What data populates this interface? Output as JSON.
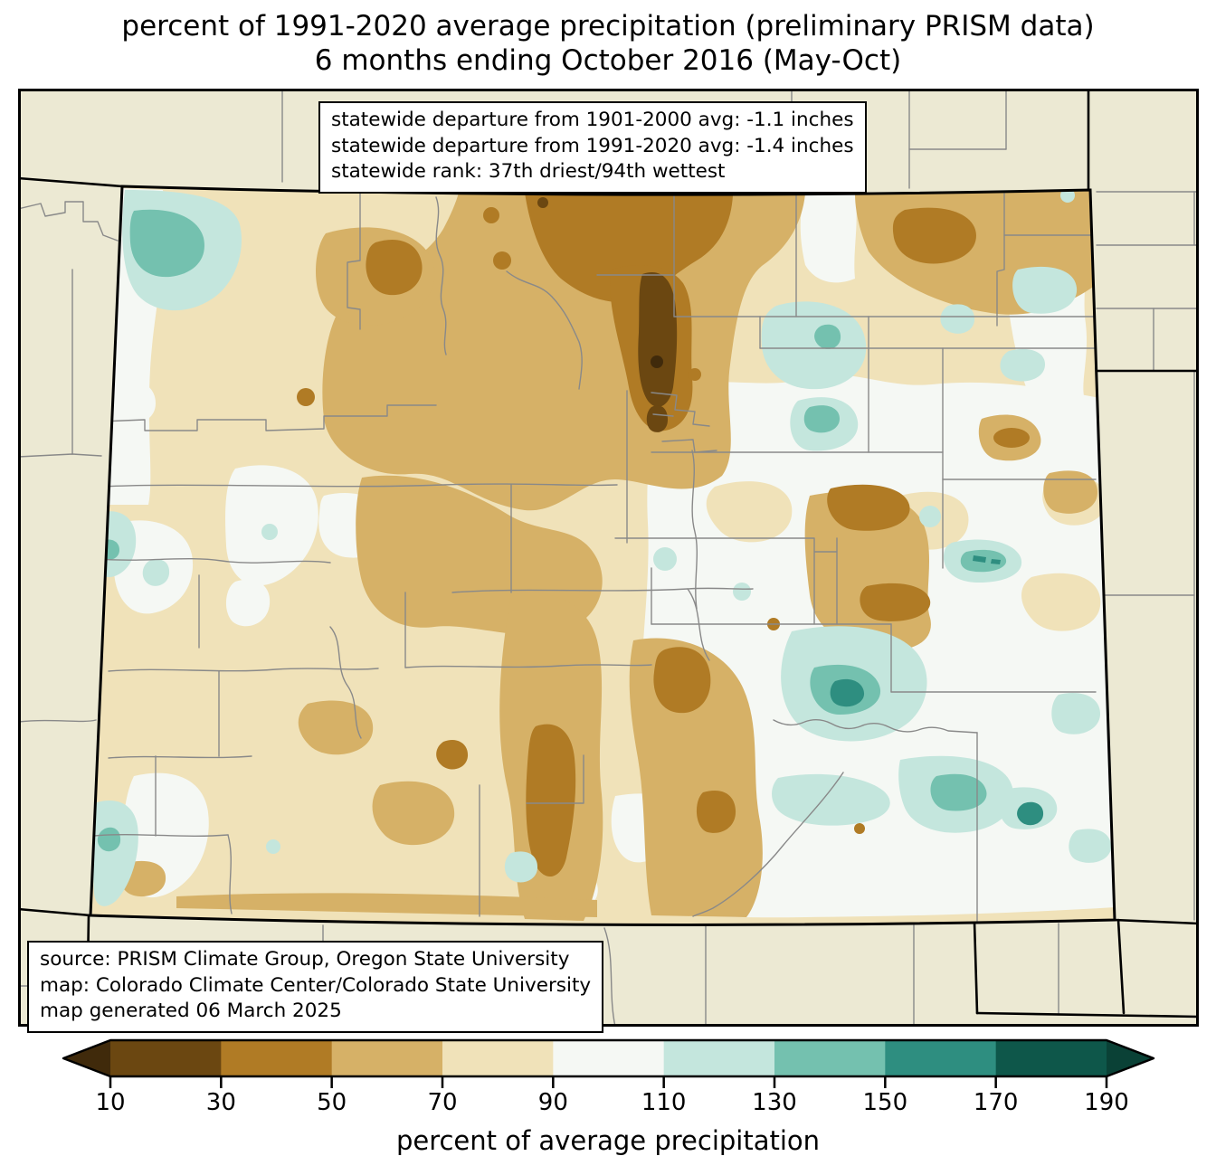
{
  "title": {
    "line1": "percent of 1991-2020 average precipitation (preliminary PRISM data)",
    "line2": "6 months ending October 2016 (May-Oct)"
  },
  "stats_box": {
    "line1": "statewide departure from 1901-2000 avg: -1.1 inches",
    "line2": "statewide departure from 1991-2020 avg: -1.4 inches",
    "line3": "statewide rank: 37th driest/94th wettest"
  },
  "source_box": {
    "line1": "source: PRISM Climate Group, Oregon State University",
    "line2": "map: Colorado Climate Center/Colorado State University",
    "line3": "map generated 06 March 2025"
  },
  "colorbar": {
    "label": "percent of average precipitation",
    "ticks": [
      "10",
      "30",
      "50",
      "70",
      "90",
      "110",
      "130",
      "150",
      "170",
      "190"
    ],
    "band_colors": [
      "#6B4711",
      "#B07B25",
      "#D6B167",
      "#F0E2B9",
      "#F5F8F4",
      "#C4E6DD",
      "#74C1AF",
      "#2E8E80",
      "#0E574A"
    ],
    "under_color": "#402A0B",
    "over_color": "#0A4136"
  },
  "map": {
    "region": "Colorado",
    "neighbor_fill": "#ECE9D3",
    "base_fill": "#F0E2B9",
    "county_line_color": "#898989",
    "state_border_color": "#000000"
  },
  "chart_data": {
    "type": "heatmap",
    "title": "percent of 1991-2020 average precipitation (preliminary PRISM data)",
    "subtitle": "6 months ending October 2016 (May-Oct)",
    "region": "Colorado",
    "variable": "percent of average precipitation",
    "colorbar_ticks": [
      10,
      30,
      50,
      70,
      90,
      110,
      130,
      150,
      170,
      190
    ],
    "bands": [
      {
        "range": "<10",
        "color": "#402A0B"
      },
      {
        "range": "10-30",
        "color": "#6B4711"
      },
      {
        "range": "30-50",
        "color": "#B07B25"
      },
      {
        "range": "50-70",
        "color": "#D6B167"
      },
      {
        "range": "70-90",
        "color": "#F0E2B9"
      },
      {
        "range": "90-110",
        "color": "#F5F8F4"
      },
      {
        "range": "110-130",
        "color": "#C4E6DD"
      },
      {
        "range": "130-150",
        "color": "#74C1AF"
      },
      {
        "range": "150-170",
        "color": "#2E8E80"
      },
      {
        "range": "170-190",
        "color": "#0E574A"
      },
      {
        "range": ">190",
        "color": "#0A4136"
      }
    ],
    "statewide_departure_from_1901_2000_avg_inches": -1.1,
    "statewide_departure_from_1991_2020_avg_inches": -1.4,
    "statewide_rank": "37th driest/94th wettest",
    "pattern_summary": "Drier than average (50-90%) across northwest, north-central and central Colorado with driest pockets (10-50%) along the northern Front Range and central mountains; near to above average (90-130%) across far northwest corner, west-central valleys and the eastern plains; wettest pockets (130-170%) in the southeast plains",
    "legend_position": "bottom"
  }
}
